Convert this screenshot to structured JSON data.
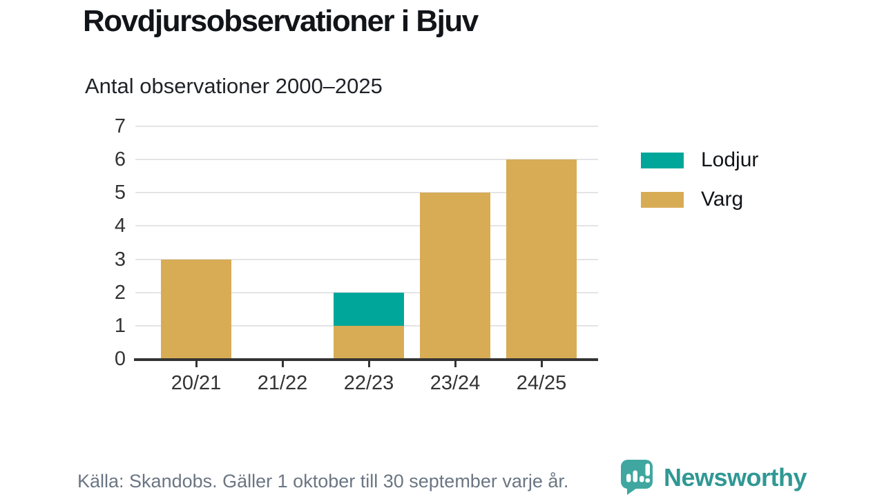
{
  "chart_data": {
    "type": "bar",
    "stacked": true,
    "title": "Rovdjursobservationer i Bjuv",
    "subtitle": "Antal observationer 2000–2025",
    "categories": [
      "20/21",
      "21/22",
      "22/23",
      "23/24",
      "24/25"
    ],
    "series": [
      {
        "name": "Varg",
        "color": "#d8ac55",
        "values": [
          3,
          0,
          1,
          5,
          6
        ]
      },
      {
        "name": "Lodjur",
        "color": "#00a69a",
        "values": [
          0,
          0,
          1,
          0,
          0
        ]
      }
    ],
    "totals": [
      3,
      0,
      2,
      5,
      6
    ],
    "xlabel": "",
    "ylabel": "",
    "ylim": [
      0,
      7
    ],
    "yticks": [
      0,
      1,
      2,
      3,
      4,
      5,
      6,
      7
    ],
    "grid": true,
    "legend_position": "right"
  },
  "legend": {
    "items": [
      {
        "label": "Lodjur",
        "color": "#00a69a"
      },
      {
        "label": "Varg",
        "color": "#d8ac55"
      }
    ]
  },
  "footer": {
    "source": "Källa: Skandobs. Gäller 1 oktober till 30 september varje år.",
    "brand": "Newsworthy"
  },
  "colors": {
    "lodjur": "#00a69a",
    "varg": "#d8ac55",
    "grid": "#e4e4e6",
    "axis": "#333333",
    "tick_text": "#333333",
    "title_text": "#111418",
    "source_text": "#6b7683",
    "brand_teal": "#2f9894",
    "logo_teal": "#3fa7a0",
    "background": "#ffffff"
  }
}
